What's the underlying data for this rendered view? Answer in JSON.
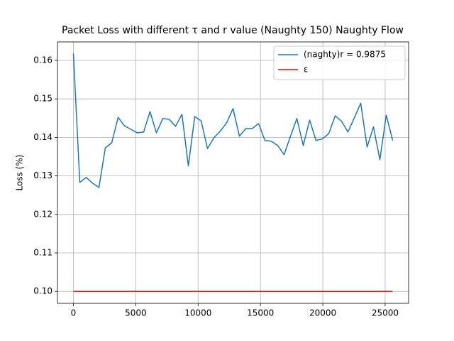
{
  "chart_data": {
    "type": "line",
    "title": "Packet Loss with different τ and r value (Naughty 150) Naughty Flow",
    "y_label": "Loss (%)",
    "x": [
      0,
      512,
      1024,
      1536,
      2048,
      2560,
      3072,
      3584,
      4096,
      4608,
      5120,
      5632,
      6144,
      6656,
      7168,
      7680,
      8192,
      8704,
      9216,
      9728,
      10240,
      10752,
      11264,
      11776,
      12288,
      12800,
      13312,
      13824,
      14336,
      14848,
      15360,
      15872,
      16384,
      16896,
      17408,
      17920,
      18432,
      18944,
      19456,
      19968,
      20480,
      20992,
      21504,
      22016,
      22528,
      23040,
      23552,
      24064,
      24576,
      25088,
      25600
    ],
    "series": [
      {
        "name": "(naghty)r = 0.9875",
        "color": "#1f77b4",
        "values": [
          0.1618,
          0.1283,
          0.1296,
          0.1281,
          0.127,
          0.1373,
          0.1386,
          0.1452,
          0.143,
          0.1421,
          0.1412,
          0.1414,
          0.1467,
          0.1412,
          0.1449,
          0.1447,
          0.1429,
          0.146,
          0.1326,
          0.1454,
          0.1443,
          0.1371,
          0.1399,
          0.1416,
          0.1438,
          0.1475,
          0.1403,
          0.1423,
          0.1423,
          0.1436,
          0.1392,
          0.139,
          0.1379,
          0.1355,
          0.1403,
          0.1449,
          0.1379,
          0.1445,
          0.1392,
          0.1396,
          0.141,
          0.1456,
          0.1442,
          0.1414,
          0.1451,
          0.1489,
          0.1375,
          0.1427,
          0.1342,
          0.1458,
          0.1392
        ]
      },
      {
        "name": "ε",
        "color": "#ff0000",
        "x": [
          0,
          25600
        ],
        "values": [
          0.1,
          0.1
        ]
      }
    ],
    "xlim": [
      -1280,
      26880
    ],
    "ylim": [
      0.0969,
      0.1648
    ],
    "xticks": [
      0,
      5000,
      10000,
      15000,
      20000,
      25000
    ],
    "yticks": [
      {
        "value": 0.1,
        "label": "0.10"
      },
      0.11,
      0.12,
      0.13,
      0.14,
      0.15,
      0.16
    ],
    "grid": true,
    "legend": "upper right"
  }
}
